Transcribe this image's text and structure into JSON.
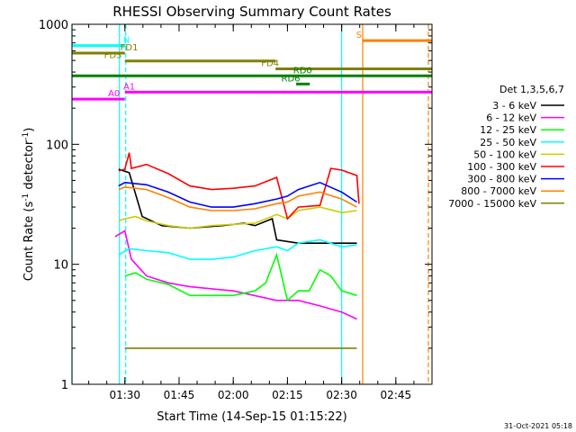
{
  "chart_data": {
    "type": "line",
    "title": "RHESSI Observing Summary Count Rates",
    "xlabel": "Start Time (14-Sep-15 01:15:22)",
    "ylabel_parts": [
      "Count Rate (s",
      "-1",
      " detector",
      "-1",
      ")"
    ],
    "ylog": true,
    "ylim": [
      1,
      1000
    ],
    "xlim": [
      1.2561,
      2.9167
    ],
    "x_unit": "hours UT on 14-Sep-15",
    "x_ticks": [
      {
        "t": 1.5,
        "label": "01:30"
      },
      {
        "t": 1.75,
        "label": "01:45"
      },
      {
        "t": 2.0,
        "label": "02:00"
      },
      {
        "t": 2.25,
        "label": "02:15"
      },
      {
        "t": 2.5,
        "label": "02:30"
      },
      {
        "t": 2.75,
        "label": "02:45"
      }
    ],
    "y_ticks": [
      {
        "v": 1,
        "label": "1"
      },
      {
        "v": 10,
        "label": "10"
      },
      {
        "v": 100,
        "label": "100"
      },
      {
        "v": 1000,
        "label": "1000"
      }
    ],
    "legend_position": "right",
    "legend_title": "Det 1,3,5,6,7",
    "footer": "31-Oct-2021 05:18",
    "series": [
      {
        "name": "3 - 6 keV",
        "color": "#000000",
        "points": [
          [
            1.471,
            62
          ],
          [
            1.52,
            58
          ],
          [
            1.58,
            25
          ],
          [
            1.67,
            21
          ],
          [
            1.8,
            20
          ],
          [
            1.95,
            21
          ],
          [
            2.05,
            22
          ],
          [
            2.1,
            21
          ],
          [
            2.18,
            24
          ],
          [
            2.2,
            16
          ],
          [
            2.3,
            15
          ],
          [
            2.4,
            15
          ],
          [
            2.5,
            15
          ],
          [
            2.57,
            15
          ]
        ]
      },
      {
        "name": "6 - 12 keV",
        "color": "#ff00ff",
        "points": [
          [
            1.455,
            17
          ],
          [
            1.5,
            19
          ],
          [
            1.53,
            11
          ],
          [
            1.6,
            8
          ],
          [
            1.7,
            7
          ],
          [
            1.8,
            6.5
          ],
          [
            2.0,
            6
          ],
          [
            2.2,
            5
          ],
          [
            2.3,
            5
          ],
          [
            2.4,
            4.5
          ],
          [
            2.5,
            4
          ],
          [
            2.57,
            3.5
          ]
        ]
      },
      {
        "name": "12 - 25 keV",
        "color": "#00ff00",
        "points": [
          [
            1.5,
            8
          ],
          [
            1.55,
            8.5
          ],
          [
            1.6,
            7.5
          ],
          [
            1.7,
            6.8
          ],
          [
            1.8,
            5.5
          ],
          [
            1.9,
            5.5
          ],
          [
            2.0,
            5.5
          ],
          [
            2.1,
            6
          ],
          [
            2.15,
            7
          ],
          [
            2.2,
            12
          ],
          [
            2.25,
            5
          ],
          [
            2.3,
            6
          ],
          [
            2.35,
            6
          ],
          [
            2.4,
            9
          ],
          [
            2.45,
            8
          ],
          [
            2.5,
            6
          ],
          [
            2.57,
            5.5
          ]
        ]
      },
      {
        "name": "25 - 50 keV",
        "color": "#00ffff",
        "points": [
          [
            1.471,
            12
          ],
          [
            1.52,
            13.5
          ],
          [
            1.6,
            13
          ],
          [
            1.7,
            12.5
          ],
          [
            1.8,
            11
          ],
          [
            1.9,
            11
          ],
          [
            2.0,
            11.5
          ],
          [
            2.1,
            13
          ],
          [
            2.2,
            14
          ],
          [
            2.25,
            13
          ],
          [
            2.3,
            15
          ],
          [
            2.4,
            16
          ],
          [
            2.5,
            14
          ],
          [
            2.57,
            14.5
          ]
        ]
      },
      {
        "name": "50 - 100 keV",
        "color": "#cccc00",
        "points": [
          [
            1.471,
            23
          ],
          [
            1.5,
            24
          ],
          [
            1.55,
            25
          ],
          [
            1.6,
            23
          ],
          [
            1.7,
            21
          ],
          [
            1.8,
            20
          ],
          [
            1.9,
            21
          ],
          [
            2.0,
            21.5
          ],
          [
            2.1,
            22
          ],
          [
            2.2,
            26
          ],
          [
            2.25,
            24
          ],
          [
            2.3,
            28
          ],
          [
            2.4,
            30
          ],
          [
            2.5,
            27
          ],
          [
            2.57,
            28
          ]
        ]
      },
      {
        "name": "100 - 300 keV",
        "color": "#ff0000",
        "points": [
          [
            1.471,
            60
          ],
          [
            1.5,
            62
          ],
          [
            1.52,
            85
          ],
          [
            1.53,
            63
          ],
          [
            1.6,
            68
          ],
          [
            1.7,
            57
          ],
          [
            1.8,
            45
          ],
          [
            1.9,
            42
          ],
          [
            2.0,
            43
          ],
          [
            2.1,
            45
          ],
          [
            2.2,
            53
          ],
          [
            2.25,
            24
          ],
          [
            2.3,
            30
          ],
          [
            2.4,
            31
          ],
          [
            2.45,
            63
          ],
          [
            2.5,
            61
          ],
          [
            2.57,
            55
          ],
          [
            2.58,
            32
          ]
        ]
      },
      {
        "name": "300 - 800 keV",
        "color": "#0000ff",
        "points": [
          [
            1.471,
            45
          ],
          [
            1.5,
            48
          ],
          [
            1.55,
            47
          ],
          [
            1.6,
            46
          ],
          [
            1.7,
            40
          ],
          [
            1.8,
            33
          ],
          [
            1.9,
            30
          ],
          [
            2.0,
            30
          ],
          [
            2.1,
            32
          ],
          [
            2.2,
            35
          ],
          [
            2.25,
            37
          ],
          [
            2.3,
            42
          ],
          [
            2.4,
            48
          ],
          [
            2.5,
            40
          ],
          [
            2.57,
            33
          ]
        ]
      },
      {
        "name": "800 - 7000 keV",
        "color": "#ff8000",
        "points": [
          [
            1.471,
            42
          ],
          [
            1.5,
            44
          ],
          [
            1.55,
            43
          ],
          [
            1.6,
            42
          ],
          [
            1.7,
            36
          ],
          [
            1.8,
            30
          ],
          [
            1.9,
            28
          ],
          [
            2.0,
            28
          ],
          [
            2.1,
            29
          ],
          [
            2.2,
            32
          ],
          [
            2.25,
            33
          ],
          [
            2.3,
            37
          ],
          [
            2.4,
            40
          ],
          [
            2.5,
            35
          ],
          [
            2.57,
            30
          ]
        ]
      },
      {
        "name": "7000 - 15000 keV",
        "color": "#808000",
        "points": [
          [
            1.5,
            2
          ],
          [
            1.6,
            2
          ],
          [
            1.8,
            2
          ],
          [
            2.2,
            2
          ],
          [
            2.4,
            2
          ],
          [
            2.57,
            2
          ]
        ]
      }
    ],
    "bars": [
      {
        "label": "N",
        "color": "#00ffff",
        "y": 665,
        "t1": 1.2561,
        "t2": 1.5039,
        "label_t": 1.507
      },
      {
        "label": "S",
        "color": "#ff8000",
        "y": 732,
        "t1": 2.597,
        "t2": 2.9167,
        "label_t": 2.58
      },
      {
        "label": "FD1",
        "color": "#808000",
        "y": 575,
        "t1": 1.2561,
        "t2": 1.5,
        "label_t": 1.52
      },
      {
        "label": "FD3",
        "color": "#808000",
        "y": 495,
        "t1": 1.5,
        "t2": 2.195,
        "label_t": 1.445
      },
      {
        "label": "FD4",
        "color": "#808000",
        "y": 425,
        "t1": 2.195,
        "t2": 2.9167,
        "label_t": 2.17
      },
      {
        "label": "RD0",
        "color": "#008000",
        "y": 372,
        "t1": 1.2561,
        "t2": 2.9167,
        "label_t": 2.32
      },
      {
        "label": "RD6",
        "color": "#008000",
        "y": 318,
        "t1": 2.29,
        "t2": 2.353,
        "label_t": 2.265
      },
      {
        "label": "A0",
        "color": "#ff00ff",
        "y": 238,
        "t1": 1.2561,
        "t2": 1.5,
        "label_t": 1.45
      },
      {
        "label": "A1",
        "color": "#ff00ff",
        "y": 272,
        "t1": 1.5,
        "t2": 2.9167,
        "label_t": 1.52
      }
    ],
    "vlines": [
      {
        "t": 1.2561,
        "color": "#00ffff",
        "style": "solid"
      },
      {
        "t": 1.475,
        "color": "#00ffff",
        "style": "solid"
      },
      {
        "t": 1.5039,
        "color": "#00ffff",
        "style": "dashed"
      },
      {
        "t": 2.5,
        "color": "#00ffff",
        "style": "solid"
      },
      {
        "t": 2.597,
        "color": "#ff8000",
        "style": "solid"
      },
      {
        "t": 2.9,
        "color": "#ff8000",
        "style": "dashed"
      }
    ]
  }
}
